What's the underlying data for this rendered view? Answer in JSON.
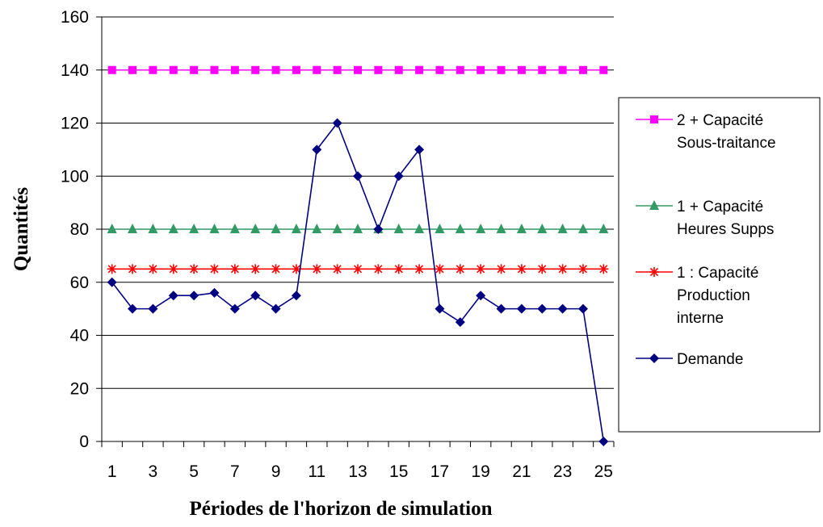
{
  "chart_data": {
    "type": "line",
    "title": "",
    "xlabel": "Périodes de l'horizon de simulation",
    "ylabel": "Quantités",
    "ylim": [
      0,
      160
    ],
    "y_ticks": [
      0,
      20,
      40,
      60,
      80,
      100,
      120,
      140,
      160
    ],
    "x": [
      1,
      2,
      3,
      4,
      5,
      6,
      7,
      8,
      9,
      10,
      11,
      12,
      13,
      14,
      15,
      16,
      17,
      18,
      19,
      20,
      21,
      22,
      23,
      24,
      25
    ],
    "x_tick_labels": [
      "1",
      "3",
      "5",
      "7",
      "9",
      "11",
      "13",
      "15",
      "17",
      "19",
      "21",
      "23",
      "25"
    ],
    "grid": "horizontal",
    "legend_position": "right",
    "series": [
      {
        "name": "2 + Capacité Sous-traitance",
        "legend_lines": [
          "2 + Capacité",
          "Sous-traitance"
        ],
        "color": "#ff00ff",
        "marker": "square",
        "values": [
          140,
          140,
          140,
          140,
          140,
          140,
          140,
          140,
          140,
          140,
          140,
          140,
          140,
          140,
          140,
          140,
          140,
          140,
          140,
          140,
          140,
          140,
          140,
          140,
          140
        ]
      },
      {
        "name": "1 + Capacité Heures Supps",
        "legend_lines": [
          "1 + Capacité",
          "Heures Supps"
        ],
        "color": "#339966",
        "marker": "triangle",
        "values": [
          80,
          80,
          80,
          80,
          80,
          80,
          80,
          80,
          80,
          80,
          80,
          80,
          80,
          80,
          80,
          80,
          80,
          80,
          80,
          80,
          80,
          80,
          80,
          80,
          80
        ]
      },
      {
        "name": "1 : Capacité Production interne",
        "legend_lines": [
          "1 : Capacité",
          "Production",
          "interne"
        ],
        "color": "#ff0000",
        "marker": "star",
        "values": [
          65,
          65,
          65,
          65,
          65,
          65,
          65,
          65,
          65,
          65,
          65,
          65,
          65,
          65,
          65,
          65,
          65,
          65,
          65,
          65,
          65,
          65,
          65,
          65,
          65
        ]
      },
      {
        "name": "Demande",
        "legend_lines": [
          "Demande"
        ],
        "color": "#000080",
        "marker": "diamond",
        "values": [
          60,
          50,
          50,
          55,
          55,
          56,
          50,
          55,
          50,
          55,
          110,
          120,
          100,
          80,
          100,
          110,
          50,
          45,
          55,
          50,
          50,
          50,
          50,
          50,
          0
        ]
      }
    ]
  }
}
